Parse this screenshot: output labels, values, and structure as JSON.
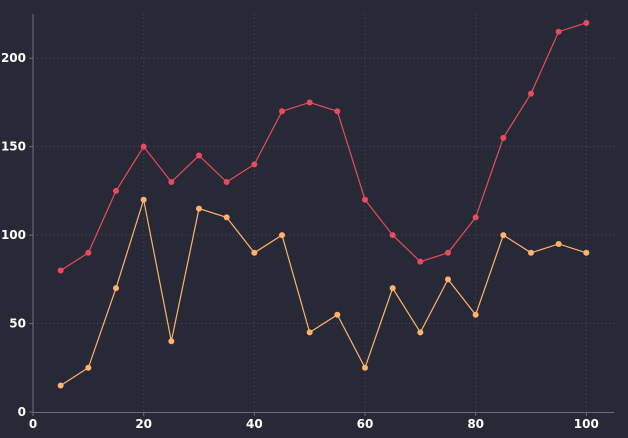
{
  "chart_data": {
    "type": "line",
    "title": "",
    "xlabel": "",
    "ylabel": "",
    "xlim": [
      0,
      105
    ],
    "ylim": [
      0,
      225
    ],
    "x_ticks": [
      0,
      20,
      40,
      60,
      80,
      100
    ],
    "y_ticks": [
      0,
      50,
      100,
      150,
      200
    ],
    "grid": true,
    "legend": "none",
    "x": [
      5,
      10,
      15,
      20,
      25,
      30,
      35,
      40,
      45,
      50,
      55,
      60,
      65,
      70,
      75,
      80,
      85,
      90,
      95,
      100
    ],
    "series": [
      {
        "color": "#e84a5f",
        "values": [
          80,
          90,
          125,
          150,
          130,
          145,
          130,
          140,
          170,
          175,
          170,
          120,
          100,
          85,
          90,
          110,
          155,
          180,
          215,
          220
        ]
      },
      {
        "color": "#ffb26b",
        "values": [
          15,
          25,
          70,
          120,
          40,
          115,
          110,
          90,
          100,
          45,
          55,
          25,
          70,
          45,
          75,
          55,
          100,
          90,
          95,
          90
        ]
      }
    ],
    "colors": {
      "background": "#272a36",
      "grid": "#4a4e5e",
      "axis": "#6a6e7c",
      "tick_text": "#ffffff"
    }
  }
}
